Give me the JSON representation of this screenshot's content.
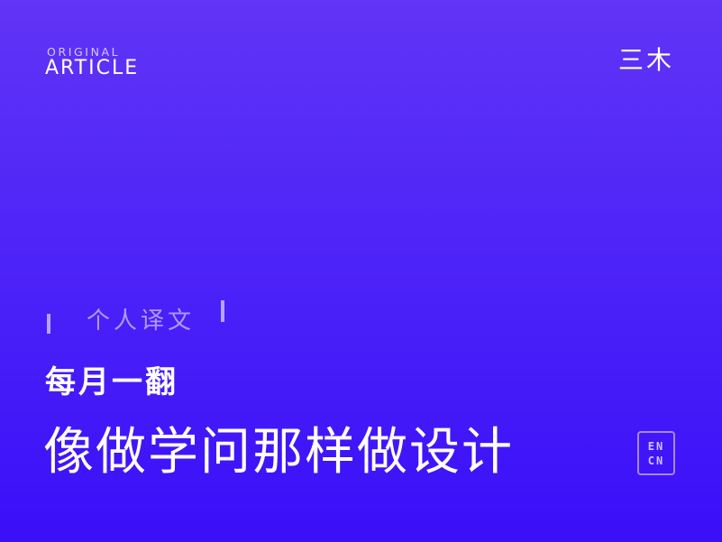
{
  "header": {
    "kicker_small": "ORIGINAL",
    "kicker_big": "ARTICLE",
    "brand": "三木"
  },
  "content": {
    "tag": "个人译文",
    "series": "每月一翻",
    "title": "像做学问那样做设计"
  },
  "language_badge": {
    "line1": "EN",
    "line2": "CN"
  },
  "colors": {
    "gradient_top": "#6134f6",
    "gradient_bottom": "#3a0ff9",
    "text": "#ffffff"
  }
}
